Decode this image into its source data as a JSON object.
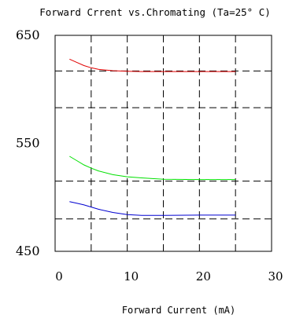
{
  "chart_data": {
    "type": "line",
    "title": "Forward Crrent vs.Chromating (Ta=25° C)",
    "xlabel": "Forward Current (mA)",
    "ylabel": "",
    "xlim": [
      0,
      30
    ],
    "ylim": [
      450,
      650
    ],
    "x_ticks": [
      "0",
      "10",
      "20",
      "30"
    ],
    "y_ticks": [
      "450",
      "550",
      "650"
    ],
    "grid": true,
    "grid_style": "dashed",
    "x_gridlines": [
      5,
      10,
      15,
      20,
      25
    ],
    "y_gridlines": [
      480,
      515,
      583,
      617
    ],
    "legend": "none",
    "series": [
      {
        "color": "#e00000",
        "points": [
          [
            2,
            628
          ],
          [
            3,
            625
          ],
          [
            4,
            622
          ],
          [
            5,
            620
          ],
          [
            6,
            618.5
          ],
          [
            8,
            617.3
          ],
          [
            10,
            616.8
          ],
          [
            12,
            616.5
          ],
          [
            15,
            616.5
          ],
          [
            20,
            616.5
          ],
          [
            25,
            616.5
          ]
        ]
      },
      {
        "color": "#00e000",
        "points": [
          [
            2,
            538
          ],
          [
            3,
            534
          ],
          [
            4,
            530
          ],
          [
            5,
            527
          ],
          [
            6,
            524.5
          ],
          [
            8,
            521
          ],
          [
            10,
            519
          ],
          [
            12,
            518
          ],
          [
            15,
            516.8
          ],
          [
            20,
            516.5
          ],
          [
            25,
            516.5
          ]
        ]
      },
      {
        "color": "#0000d0",
        "points": [
          [
            2,
            496
          ],
          [
            3,
            494.5
          ],
          [
            4,
            493
          ],
          [
            5,
            491
          ],
          [
            6,
            489
          ],
          [
            8,
            486
          ],
          [
            10,
            484
          ],
          [
            12,
            483.3
          ],
          [
            15,
            483.3
          ],
          [
            20,
            483.5
          ],
          [
            25,
            483.5
          ]
        ]
      }
    ]
  }
}
